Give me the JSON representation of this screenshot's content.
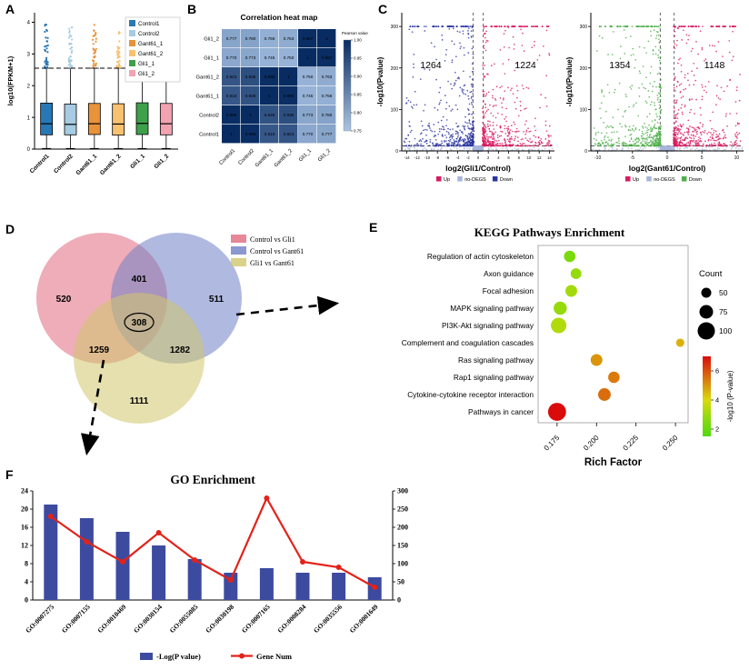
{
  "figure": {
    "background": "#ffffff"
  },
  "panels": {
    "A": {
      "label": "A"
    },
    "B": {
      "label": "B"
    },
    "C": {
      "label": "C"
    },
    "D": {
      "label": "D"
    },
    "E": {
      "label": "E"
    },
    "F": {
      "label": "F"
    }
  },
  "chart_data": [
    {
      "id": "boxplot",
      "type": "box",
      "panel": "A",
      "ylabel": "log10(FPKM+1)",
      "ylim": [
        0,
        4.3
      ],
      "yticks": [
        0,
        1,
        2,
        3,
        4
      ],
      "categories": [
        "Control1",
        "Control2",
        "Gant61_1",
        "Gant61_2",
        "Gli1_1",
        "Gli1_2"
      ],
      "legend": [
        "Control1",
        "Control2",
        "Gant61_1",
        "Gant61_2",
        "Gli1_1",
        "Gli1_2"
      ],
      "colors": [
        "#2878b5",
        "#a6cbe3",
        "#e8923a",
        "#f8c170",
        "#3fa04c",
        "#f2a3b0"
      ],
      "boxes": [
        {
          "q1": 0.45,
          "median": 0.8,
          "q3": 1.45,
          "whisker_low": 0.02,
          "whisker_high": 2.55,
          "outlier_max": 4.05
        },
        {
          "q1": 0.45,
          "median": 0.78,
          "q3": 1.42,
          "whisker_low": 0.02,
          "whisker_high": 2.55,
          "outlier_max": 3.85
        },
        {
          "q1": 0.46,
          "median": 0.8,
          "q3": 1.44,
          "whisker_low": 0.02,
          "whisker_high": 2.55,
          "outlier_max": 3.95
        },
        {
          "q1": 0.44,
          "median": 0.79,
          "q3": 1.43,
          "whisker_low": 0.02,
          "whisker_high": 2.55,
          "outlier_max": 3.75
        },
        {
          "q1": 0.46,
          "median": 0.81,
          "q3": 1.46,
          "whisker_low": 0.02,
          "whisker_high": 2.55,
          "outlier_max": 3.95
        },
        {
          "q1": 0.45,
          "median": 0.8,
          "q3": 1.44,
          "whisker_low": 0.02,
          "whisker_high": 2.55,
          "outlier_max": 3.85
        }
      ]
    },
    {
      "id": "heatmap",
      "type": "heatmap",
      "panel": "B",
      "title": "Correlation heat map",
      "rows": [
        "Gli1_2",
        "Gli1_1",
        "Gant61_2",
        "Gant61_1",
        "Control2",
        "Control1"
      ],
      "cols": [
        "Control1",
        "Control2",
        "Gant61_1",
        "Gant61_2",
        "Gli1_1",
        "Gli1_2"
      ],
      "values": [
        [
          0.777,
          0.78,
          0.756,
          0.763,
          0.997,
          1
        ],
        [
          0.77,
          0.773,
          0.745,
          0.75,
          1,
          0.997
        ],
        [
          0.923,
          0.935,
          0.995,
          1,
          0.75,
          0.763
        ],
        [
          0.919,
          0.928,
          1,
          0.995,
          0.745,
          0.756
        ],
        [
          0.996,
          1,
          0.928,
          0.935,
          0.773,
          0.78
        ],
        [
          1,
          0.996,
          0.919,
          0.923,
          0.77,
          0.777
        ]
      ],
      "colorbar": {
        "title": "Pearson value",
        "ticks": [
          1.0,
          0.95,
          0.9,
          0.85,
          0.8,
          0.75
        ]
      }
    },
    {
      "id": "volcano_gli1",
      "type": "scatter",
      "panel": "C",
      "xlabel": "log2(Gli1/Control)",
      "ylabel": "-log10(Pvalue)",
      "xlim": [
        -15,
        15
      ],
      "ylim": [
        0,
        320
      ],
      "xticks": [
        -14,
        -12,
        -10,
        -8,
        -6,
        -4,
        -2,
        0,
        2,
        4,
        6,
        8,
        10,
        12,
        14
      ],
      "yticks": [
        0,
        100,
        200,
        300
      ],
      "down_count": 1264,
      "up_count": 1224,
      "fold_change_cutoffs": [
        -1,
        1
      ],
      "legend": [
        {
          "label": "Up",
          "color": "#d81b60"
        },
        {
          "label": "no-DEGS",
          "color": "#a9b5d9"
        },
        {
          "label": "Down",
          "color": "#2b35a0"
        }
      ]
    },
    {
      "id": "volcano_gant61",
      "type": "scatter",
      "panel": "C",
      "xlabel": "log2(Gant61/Control)",
      "ylabel": "-log10(Pvalue)",
      "xlim": [
        -11,
        11
      ],
      "ylim": [
        0,
        320
      ],
      "xticks": [
        -10,
        -5,
        0,
        5,
        10
      ],
      "yticks": [
        0,
        100,
        200,
        300
      ],
      "down_count": 1354,
      "up_count": 1148,
      "fold_change_cutoffs": [
        -1,
        1
      ],
      "legend": [
        {
          "label": "Up",
          "color": "#d81b60"
        },
        {
          "label": "no-DEGS",
          "color": "#a9b5d9"
        },
        {
          "label": "Down",
          "color": "#4daf4a"
        }
      ]
    },
    {
      "id": "venn",
      "type": "venn",
      "panel": "D",
      "sets": [
        {
          "label": "Control vs Gli1",
          "color": "#e06a7d"
        },
        {
          "label": "Control vs Gant61",
          "color": "#6f7fc4"
        },
        {
          "label": "Gli1 vs Gant61",
          "color": "#d0c76c"
        }
      ],
      "counts": {
        "control_vs_gli1_only": 520,
        "control_overlap": 401,
        "control_vs_gant61_only": 511,
        "all_three": 308,
        "gli1_overlap": 1259,
        "gant61_overlap": 1282,
        "gli1_vs_gant61_only": 1111
      }
    },
    {
      "id": "kegg",
      "type": "bubble",
      "panel": "E",
      "title": "KEGG  Pathways Enrichment",
      "xlabel": "Rich Factor",
      "xlim": [
        0.163,
        0.258
      ],
      "xticks": [
        0.175,
        0.2,
        0.225,
        0.25
      ],
      "size_legend": {
        "title": "Count",
        "values": [
          50,
          75,
          100
        ]
      },
      "color_legend": {
        "title": "-log10 (P-value)",
        "ticks": [
          6,
          4,
          2
        ],
        "range": [
          1.5,
          7
        ]
      },
      "points": [
        {
          "pathway": "Regulation of actin cytoskeleton",
          "rich_factor": 0.183,
          "count": 60,
          "logp": 2.6
        },
        {
          "pathway": "Axon guidance",
          "rich_factor": 0.187,
          "count": 55,
          "logp": 3.0
        },
        {
          "pathway": "Focal adhesion",
          "rich_factor": 0.184,
          "count": 62,
          "logp": 3.2
        },
        {
          "pathway": "MAPK signaling pathway",
          "rich_factor": 0.177,
          "count": 72,
          "logp": 3.0
        },
        {
          "pathway": "PI3K-Akt signaling pathway",
          "rich_factor": 0.176,
          "count": 88,
          "logp": 3.4
        },
        {
          "pathway": "Complement and coagulation cascades",
          "rich_factor": 0.253,
          "count": 38,
          "logp": 4.6
        },
        {
          "pathway": "Ras signaling pathway",
          "rich_factor": 0.2,
          "count": 62,
          "logp": 5.0
        },
        {
          "pathway": "Rap1 signaling pathway",
          "rich_factor": 0.211,
          "count": 60,
          "logp": 5.4
        },
        {
          "pathway": "Cytokine-cytokine receptor interaction",
          "rich_factor": 0.205,
          "count": 68,
          "logp": 5.6
        },
        {
          "pathway": "Pathways in cancer",
          "rich_factor": 0.175,
          "count": 105,
          "logp": 7.0
        }
      ]
    },
    {
      "id": "go",
      "type": "bar-line",
      "panel": "F",
      "title": "GO Enrichment",
      "categories": [
        "GO:0007275",
        "GO:0007155",
        "GO:0010469",
        "GO:0030154",
        "GO:0055085",
        "GO:0030198",
        "GO:0007165",
        "GO:0008284",
        "GO:0035556",
        "GO:0001649"
      ],
      "series": [
        {
          "name": "-Log(P value)",
          "type": "bar",
          "color": "#3c4ba0",
          "axis": "left",
          "values": [
            21,
            18,
            15,
            12,
            9,
            6,
            7,
            6,
            6,
            5
          ]
        },
        {
          "name": "Gene Num",
          "type": "line",
          "color": "#e32219",
          "axis": "right",
          "values": [
            230,
            160,
            105,
            185,
            110,
            55,
            280,
            105,
            90,
            35
          ]
        }
      ],
      "left_axis": {
        "ticks": [
          0,
          4,
          8,
          12,
          16,
          20,
          24
        ],
        "max": 24
      },
      "right_axis": {
        "ticks": [
          0,
          50,
          100,
          150,
          200,
          250,
          300
        ],
        "max": 300
      }
    }
  ]
}
